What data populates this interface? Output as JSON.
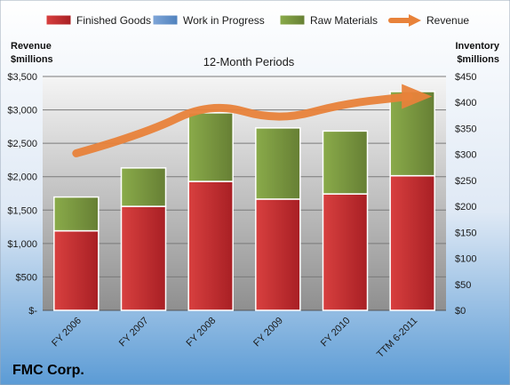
{
  "chart_data": {
    "type": "bar",
    "stacked": true,
    "subtitle": "12-Month Periods",
    "company": "FMC Corp.",
    "left_axis_title": [
      "Revenue",
      "$millions"
    ],
    "right_axis_title": [
      "Inventory",
      "$millions"
    ],
    "categories": [
      "FY 2006",
      "FY 2007",
      "FY 2008",
      "FY 2009",
      "FY 2010",
      "TTM 6-2011"
    ],
    "series": [
      {
        "name": "Finished Goods",
        "axis": "right",
        "color": "#C0262C",
        "values": [
          153,
          200,
          248,
          214,
          224,
          259
        ]
      },
      {
        "name": "Work in Progress",
        "axis": "right",
        "color": "#4F81BD",
        "values": [
          0,
          0,
          0,
          0,
          0,
          0
        ]
      },
      {
        "name": "Raw Materials",
        "axis": "right",
        "color": "#77933C",
        "values": [
          65,
          74,
          132,
          137,
          121,
          162
        ]
      }
    ],
    "line_series": {
      "name": "Revenue",
      "axis": "left",
      "color": "#E8823A",
      "values": [
        2350,
        2630,
        3120,
        2830,
        3100,
        3200
      ]
    },
    "left_axis": {
      "min": 0,
      "max": 3500,
      "step": 500,
      "labels": [
        "$-",
        "$500",
        "$1,000",
        "$1,500",
        "$2,000",
        "$2,500",
        "$3,000",
        "$3,500"
      ]
    },
    "right_axis": {
      "min": 0,
      "max": 450,
      "step": 50,
      "labels": [
        "$0",
        "$50",
        "$100",
        "$150",
        "$200",
        "$250",
        "$300",
        "$350",
        "$400",
        "$450"
      ]
    },
    "legend_position": "top",
    "grid": true
  }
}
